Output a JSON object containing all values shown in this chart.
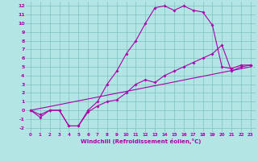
{
  "xlabel": "Windchill (Refroidissement éolien,°C)",
  "bg_color": "#b3e5e5",
  "grid_color": "#7fc0c0",
  "line_color": "#aa00aa",
  "xlim": [
    -0.5,
    23.5
  ],
  "ylim": [
    -2.5,
    12.5
  ],
  "xticks": [
    0,
    1,
    2,
    3,
    4,
    5,
    6,
    7,
    8,
    9,
    10,
    11,
    12,
    13,
    14,
    15,
    16,
    17,
    18,
    19,
    20,
    21,
    22,
    23
  ],
  "yticks": [
    -2,
    -1,
    0,
    1,
    2,
    3,
    4,
    5,
    6,
    7,
    8,
    9,
    10,
    11,
    12
  ],
  "line1_x": [
    0,
    1,
    2,
    3,
    4,
    5,
    6,
    7,
    8,
    9,
    10,
    11,
    12,
    13,
    14,
    15,
    16,
    17,
    18,
    19,
    20,
    21,
    22,
    23
  ],
  "line1_y": [
    0.0,
    0.22,
    0.43,
    0.65,
    0.87,
    1.09,
    1.3,
    1.52,
    1.74,
    1.96,
    2.17,
    2.39,
    2.61,
    2.83,
    3.04,
    3.26,
    3.48,
    3.7,
    3.91,
    4.13,
    4.35,
    4.57,
    4.78,
    5.0
  ],
  "line2_x": [
    0,
    1,
    2,
    3,
    4,
    5,
    6,
    7,
    8,
    9,
    10,
    11,
    12,
    13,
    14,
    15,
    16,
    17,
    18,
    19,
    20,
    21,
    22,
    23
  ],
  "line2_y": [
    0.0,
    -0.5,
    0.0,
    0.0,
    -1.8,
    -1.8,
    -0.2,
    0.5,
    1.0,
    1.2,
    2.0,
    3.0,
    3.5,
    3.2,
    4.0,
    4.5,
    5.0,
    5.5,
    6.0,
    6.5,
    7.5,
    4.5,
    5.0,
    5.2
  ],
  "line3_x": [
    0,
    1,
    2,
    3,
    4,
    5,
    6,
    7,
    8,
    9,
    10,
    11,
    12,
    13,
    14,
    15,
    16,
    17,
    18,
    19,
    20,
    21,
    22,
    23
  ],
  "line3_y": [
    0.0,
    -0.8,
    0.0,
    0.0,
    -1.8,
    -1.8,
    0.0,
    1.0,
    3.0,
    4.5,
    6.5,
    8.0,
    10.0,
    11.8,
    12.0,
    11.5,
    12.0,
    11.5,
    11.3,
    9.8,
    5.0,
    4.8,
    5.2,
    5.2
  ]
}
